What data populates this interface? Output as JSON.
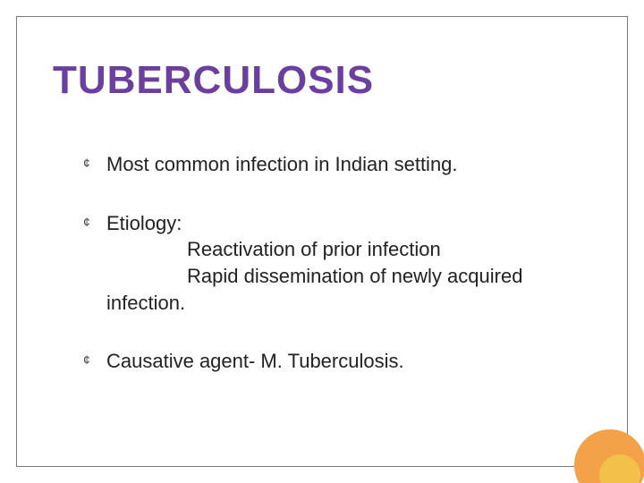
{
  "title": {
    "text": "TUBERCULOSIS",
    "color": "#6b3fa0",
    "fontsize": 44,
    "font_weight": "bold"
  },
  "bullet_symbol": "¢",
  "bullets": [
    {
      "lead": "Most common infection in Indian setting."
    },
    {
      "lead": "Etiology:",
      "sub": [
        "Reactivation of prior infection",
        "Rapid dissemination of newly acquired"
      ],
      "wrap_tail": "infection."
    },
    {
      "lead": "Causative agent- M. Tuberculosis."
    }
  ],
  "body_style": {
    "fontsize": 22,
    "text_color": "#222222",
    "bullet_color": "#444444"
  },
  "decoration": {
    "outer_circle_color": "#f4a24a",
    "inner_circle_color": "#f3c04a",
    "frame_border_color": "#7a7a7a",
    "background_color": "#ffffff"
  }
}
